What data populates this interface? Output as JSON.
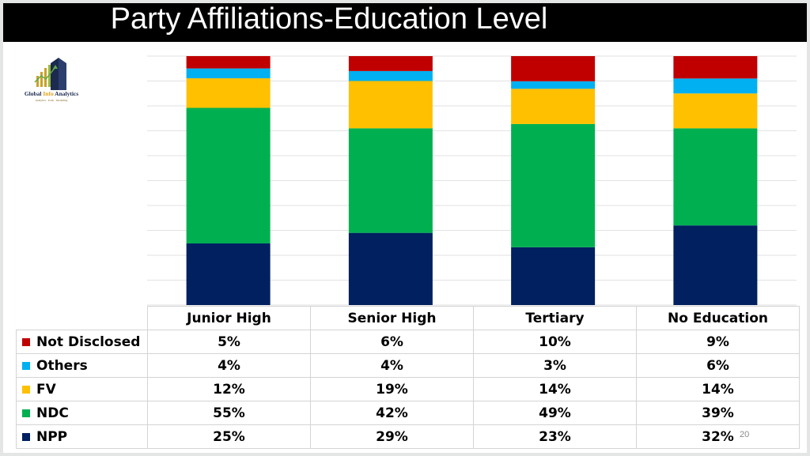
{
  "title": "Party Affiliations-Education Level",
  "logo": {
    "name_part1": "Global ",
    "name_part2": "Info",
    "name_part3": " Analytics",
    "tagline": "Analytics · Polls · Modelling"
  },
  "page_number": "20",
  "colors": {
    "title_bar": "#000000",
    "Not Disclosed": "#c00000",
    "Others": "#00b0f0",
    "FV": "#ffc000",
    "NDC": "#00b050",
    "NPP": "#002060"
  },
  "chart_data": {
    "type": "bar",
    "stacked": true,
    "percent_stacked": true,
    "title": "Party Affiliations-Education Level",
    "categories": [
      "Junior High",
      "Senior High",
      "Tertiary",
      "No Education"
    ],
    "series": [
      {
        "name": "Not Disclosed",
        "color": "#c00000",
        "values": [
          5,
          6,
          10,
          9
        ],
        "labels": [
          "5%",
          "6%",
          "10%",
          "9%"
        ]
      },
      {
        "name": "Others",
        "color": "#00b0f0",
        "values": [
          4,
          4,
          3,
          6
        ],
        "labels": [
          "4%",
          "4%",
          "3%",
          "6%"
        ]
      },
      {
        "name": "FV",
        "color": "#ffc000",
        "values": [
          12,
          19,
          14,
          14
        ],
        "labels": [
          "12%",
          "19%",
          "14%",
          "14%"
        ]
      },
      {
        "name": "NDC",
        "color": "#00b050",
        "values": [
          55,
          42,
          49,
          39
        ],
        "labels": [
          "55%",
          "42%",
          "49%",
          "39%"
        ]
      },
      {
        "name": "NPP",
        "color": "#002060",
        "values": [
          25,
          29,
          23,
          32
        ],
        "labels": [
          "25%",
          "29%",
          "23%",
          "32%"
        ]
      }
    ],
    "stack_order_bottom_to_top": [
      "NPP",
      "NDC",
      "FV",
      "Others",
      "Not Disclosed"
    ],
    "ylim": [
      0,
      100
    ],
    "grid": true,
    "legend": "data-table-below"
  }
}
